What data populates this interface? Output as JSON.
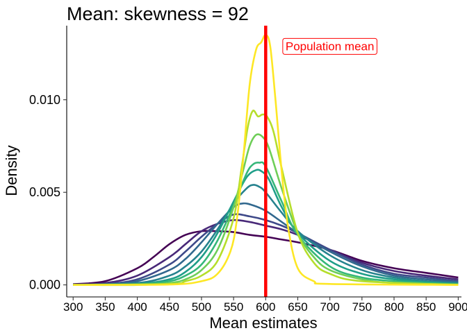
{
  "chart_data": {
    "type": "line",
    "title": "Mean: skewness = 92",
    "xlabel": "Mean estimates",
    "ylabel": "Density",
    "xlim": [
      290,
      905
    ],
    "ylim": [
      -0.00065,
      0.014
    ],
    "x_ticks": [
      300,
      350,
      400,
      450,
      500,
      550,
      600,
      650,
      700,
      750,
      800,
      850,
      900
    ],
    "y_ticks": [
      0.0,
      0.005,
      0.01
    ],
    "y_tick_labels": [
      "0.000",
      "0.005",
      "0.010"
    ],
    "grid": false,
    "reference_line": {
      "x": 600,
      "color": "#ff0000"
    },
    "annotation": {
      "text": "Population mean",
      "x": 700,
      "y": 0.0129,
      "color": "#ff0000"
    },
    "series": [
      {
        "color": "#440154",
        "points": [
          [
            300,
            4e-05
          ],
          [
            350,
            0.0002
          ],
          [
            400,
            0.0009
          ],
          [
            425,
            0.0015
          ],
          [
            450,
            0.0022
          ],
          [
            475,
            0.0027
          ],
          [
            500,
            0.0029
          ],
          [
            525,
            0.0029
          ],
          [
            550,
            0.00285
          ],
          [
            575,
            0.0027
          ],
          [
            600,
            0.0026
          ],
          [
            625,
            0.00245
          ],
          [
            650,
            0.0023
          ],
          [
            700,
            0.0019
          ],
          [
            750,
            0.0013
          ],
          [
            800,
            0.0009
          ],
          [
            850,
            0.00065
          ],
          [
            900,
            0.0004
          ]
        ]
      },
      {
        "color": "#482878",
        "points": [
          [
            300,
            2e-05
          ],
          [
            350,
            0.0001
          ],
          [
            400,
            0.0005
          ],
          [
            450,
            0.0015
          ],
          [
            475,
            0.0022
          ],
          [
            500,
            0.0029
          ],
          [
            525,
            0.0033
          ],
          [
            550,
            0.0035
          ],
          [
            575,
            0.0034
          ],
          [
            600,
            0.0032
          ],
          [
            625,
            0.003
          ],
          [
            650,
            0.0027
          ],
          [
            700,
            0.0019
          ],
          [
            750,
            0.0012
          ],
          [
            800,
            0.00075
          ],
          [
            850,
            0.0005
          ],
          [
            900,
            0.0003
          ]
        ]
      },
      {
        "color": "#3e4989",
        "points": [
          [
            300,
            1e-05
          ],
          [
            350,
            5e-05
          ],
          [
            400,
            0.0003
          ],
          [
            450,
            0.0011
          ],
          [
            475,
            0.0018
          ],
          [
            500,
            0.0026
          ],
          [
            525,
            0.0033
          ],
          [
            550,
            0.0038
          ],
          [
            575,
            0.0037
          ],
          [
            600,
            0.0035
          ],
          [
            625,
            0.0032
          ],
          [
            650,
            0.0028
          ],
          [
            700,
            0.0019
          ],
          [
            750,
            0.0011
          ],
          [
            800,
            0.0006
          ],
          [
            850,
            0.0004
          ],
          [
            900,
            0.0002
          ]
        ]
      },
      {
        "color": "#31688e",
        "points": [
          [
            300,
            0
          ],
          [
            350,
            3e-05
          ],
          [
            400,
            0.0002
          ],
          [
            450,
            0.0008
          ],
          [
            475,
            0.0014
          ],
          [
            500,
            0.0023
          ],
          [
            525,
            0.0033
          ],
          [
            550,
            0.0042
          ],
          [
            565,
            0.0044
          ],
          [
            580,
            0.0043
          ],
          [
            600,
            0.004
          ],
          [
            625,
            0.0034
          ],
          [
            650,
            0.0028
          ],
          [
            700,
            0.0018
          ],
          [
            750,
            0.001
          ],
          [
            800,
            0.0005
          ],
          [
            850,
            0.0003
          ],
          [
            900,
            0.00015
          ]
        ]
      },
      {
        "color": "#26828e",
        "points": [
          [
            300,
            0
          ],
          [
            400,
            0.0001
          ],
          [
            450,
            0.0005
          ],
          [
            475,
            0.001
          ],
          [
            500,
            0.0018
          ],
          [
            525,
            0.003
          ],
          [
            550,
            0.0044
          ],
          [
            570,
            0.0052
          ],
          [
            580,
            0.0054
          ],
          [
            590,
            0.0053
          ],
          [
            600,
            0.005
          ],
          [
            625,
            0.0039
          ],
          [
            650,
            0.0029
          ],
          [
            700,
            0.0016
          ],
          [
            750,
            0.0008
          ],
          [
            800,
            0.0004
          ],
          [
            850,
            0.0002
          ],
          [
            900,
            0.0001
          ]
        ]
      },
      {
        "color": "#1f9e89",
        "points": [
          [
            300,
            0
          ],
          [
            400,
            5e-05
          ],
          [
            450,
            0.0003
          ],
          [
            475,
            0.0007
          ],
          [
            500,
            0.0015
          ],
          [
            525,
            0.0028
          ],
          [
            550,
            0.0045
          ],
          [
            570,
            0.0058
          ],
          [
            585,
            0.0062
          ],
          [
            595,
            0.0061
          ],
          [
            605,
            0.0057
          ],
          [
            625,
            0.0042
          ],
          [
            650,
            0.0028
          ],
          [
            700,
            0.0013
          ],
          [
            750,
            0.0006
          ],
          [
            800,
            0.0003
          ],
          [
            850,
            0.00015
          ],
          [
            900,
            5e-05
          ]
        ]
      },
      {
        "color": "#35b779",
        "points": [
          [
            300,
            0
          ],
          [
            400,
            2e-05
          ],
          [
            450,
            0.0002
          ],
          [
            475,
            0.0005
          ],
          [
            500,
            0.0011
          ],
          [
            525,
            0.0024
          ],
          [
            550,
            0.0043
          ],
          [
            570,
            0.006
          ],
          [
            580,
            0.0065
          ],
          [
            590,
            0.0066
          ],
          [
            600,
            0.0064
          ],
          [
            625,
            0.0045
          ],
          [
            650,
            0.0027
          ],
          [
            700,
            0.001
          ],
          [
            750,
            0.0004
          ],
          [
            800,
            0.0002
          ],
          [
            850,
            0.0001
          ],
          [
            900,
            3e-05
          ]
        ]
      },
      {
        "color": "#6ece58",
        "points": [
          [
            300,
            0
          ],
          [
            400,
            0
          ],
          [
            450,
            0.0001
          ],
          [
            475,
            0.0003
          ],
          [
            500,
            0.0008
          ],
          [
            525,
            0.0019
          ],
          [
            550,
            0.0042
          ],
          [
            565,
            0.0062
          ],
          [
            575,
            0.0075
          ],
          [
            585,
            0.0081
          ],
          [
            595,
            0.008
          ],
          [
            605,
            0.0074
          ],
          [
            625,
            0.0052
          ],
          [
            650,
            0.0028
          ],
          [
            675,
            0.0015
          ],
          [
            700,
            0.0008
          ],
          [
            750,
            0.0003
          ],
          [
            800,
            0.0001
          ],
          [
            900,
            2e-05
          ]
        ]
      },
      {
        "color": "#b5de2b",
        "points": [
          [
            300,
            0
          ],
          [
            450,
            5e-05
          ],
          [
            475,
            0.0002
          ],
          [
            500,
            0.0005
          ],
          [
            525,
            0.0013
          ],
          [
            550,
            0.0036
          ],
          [
            562,
            0.0062
          ],
          [
            572,
            0.0085
          ],
          [
            580,
            0.0094
          ],
          [
            588,
            0.0091
          ],
          [
            595,
            0.0092
          ],
          [
            602,
            0.0091
          ],
          [
            612,
            0.0083
          ],
          [
            625,
            0.0063
          ],
          [
            650,
            0.0028
          ],
          [
            675,
            0.0012
          ],
          [
            700,
            0.0006
          ],
          [
            750,
            0.0002
          ],
          [
            900,
            0
          ]
        ]
      },
      {
        "color": "#fde725",
        "points": [
          [
            300,
            0
          ],
          [
            450,
            2e-05
          ],
          [
            500,
            0.0002
          ],
          [
            525,
            0.0006
          ],
          [
            545,
            0.0018
          ],
          [
            555,
            0.0035
          ],
          [
            565,
            0.0068
          ],
          [
            575,
            0.0108
          ],
          [
            585,
            0.0127
          ],
          [
            593,
            0.0131
          ],
          [
            600,
            0.0135
          ],
          [
            607,
            0.0129
          ],
          [
            615,
            0.0101
          ],
          [
            625,
            0.0061
          ],
          [
            635,
            0.0031
          ],
          [
            650,
            0.0009
          ],
          [
            675,
            0.0002
          ],
          [
            700,
            5e-05
          ],
          [
            900,
            0
          ]
        ]
      }
    ]
  }
}
